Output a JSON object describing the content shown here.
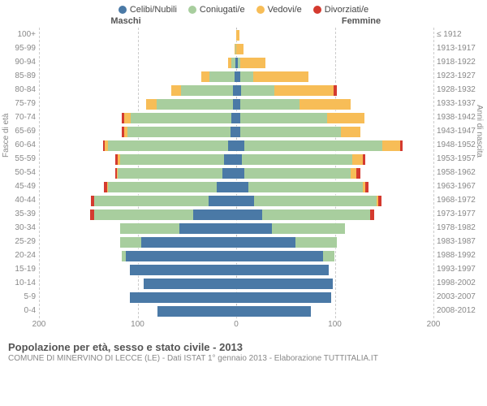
{
  "legend": [
    {
      "label": "Celibi/Nubili",
      "color": "#4a79a6"
    },
    {
      "label": "Coniugati/e",
      "color": "#a8ce9e"
    },
    {
      "label": "Vedovi/e",
      "color": "#f7bd57"
    },
    {
      "label": "Divorziati/e",
      "color": "#d43a2f"
    }
  ],
  "colors": {
    "celibi": "#4a79a6",
    "coniugati": "#a8ce9e",
    "vedovi": "#f7bd57",
    "divorziati": "#d43a2f",
    "grid": "#cccccc",
    "text_muted": "#888888"
  },
  "gender_labels": {
    "left": "Maschi",
    "right": "Femmine"
  },
  "axis_titles": {
    "left": "Fasce di età",
    "right": "Anni di nascita"
  },
  "x_axis": {
    "min": 0,
    "max": 200,
    "ticks": [
      200,
      100,
      0,
      100,
      200
    ]
  },
  "title": "Popolazione per età, sesso e stato civile - 2013",
  "subtitle": "COMUNE DI MINERVINO DI LECCE (LE) - Dati ISTAT 1° gennaio 2013 - Elaborazione TUTTITALIA.IT",
  "rows": [
    {
      "age": "100+",
      "year": "≤ 1912",
      "m": {
        "c": 0,
        "co": 0,
        "v": 0,
        "d": 0
      },
      "f": {
        "c": 0,
        "co": 0,
        "v": 3,
        "d": 0
      }
    },
    {
      "age": "95-99",
      "year": "1913-1917",
      "m": {
        "c": 0,
        "co": 1,
        "v": 1,
        "d": 0
      },
      "f": {
        "c": 0,
        "co": 0,
        "v": 7,
        "d": 0
      }
    },
    {
      "age": "90-94",
      "year": "1918-1922",
      "m": {
        "c": 1,
        "co": 4,
        "v": 3,
        "d": 0
      },
      "f": {
        "c": 2,
        "co": 2,
        "v": 26,
        "d": 0
      }
    },
    {
      "age": "85-89",
      "year": "1923-1927",
      "m": {
        "c": 2,
        "co": 25,
        "v": 8,
        "d": 0
      },
      "f": {
        "c": 4,
        "co": 13,
        "v": 56,
        "d": 0
      }
    },
    {
      "age": "80-84",
      "year": "1928-1932",
      "m": {
        "c": 3,
        "co": 53,
        "v": 10,
        "d": 0
      },
      "f": {
        "c": 5,
        "co": 34,
        "v": 60,
        "d": 3
      }
    },
    {
      "age": "75-79",
      "year": "1933-1937",
      "m": {
        "c": 3,
        "co": 78,
        "v": 10,
        "d": 0
      },
      "f": {
        "c": 4,
        "co": 60,
        "v": 52,
        "d": 0
      }
    },
    {
      "age": "70-74",
      "year": "1938-1942",
      "m": {
        "c": 5,
        "co": 102,
        "v": 7,
        "d": 2
      },
      "f": {
        "c": 4,
        "co": 88,
        "v": 38,
        "d": 0
      }
    },
    {
      "age": "65-69",
      "year": "1943-1947",
      "m": {
        "c": 6,
        "co": 104,
        "v": 4,
        "d": 2
      },
      "f": {
        "c": 4,
        "co": 102,
        "v": 20,
        "d": 0
      }
    },
    {
      "age": "60-64",
      "year": "1948-1952",
      "m": {
        "c": 8,
        "co": 122,
        "v": 3,
        "d": 2
      },
      "f": {
        "c": 8,
        "co": 140,
        "v": 18,
        "d": 3
      }
    },
    {
      "age": "55-59",
      "year": "1953-1957",
      "m": {
        "c": 12,
        "co": 106,
        "v": 2,
        "d": 3
      },
      "f": {
        "c": 6,
        "co": 112,
        "v": 10,
        "d": 3
      }
    },
    {
      "age": "50-54",
      "year": "1958-1962",
      "m": {
        "c": 14,
        "co": 106,
        "v": 1,
        "d": 2
      },
      "f": {
        "c": 8,
        "co": 108,
        "v": 6,
        "d": 4
      }
    },
    {
      "age": "45-49",
      "year": "1963-1967",
      "m": {
        "c": 20,
        "co": 110,
        "v": 1,
        "d": 3
      },
      "f": {
        "c": 12,
        "co": 116,
        "v": 3,
        "d": 3
      }
    },
    {
      "age": "40-44",
      "year": "1968-1972",
      "m": {
        "c": 28,
        "co": 116,
        "v": 0,
        "d": 3
      },
      "f": {
        "c": 18,
        "co": 124,
        "v": 2,
        "d": 3
      }
    },
    {
      "age": "35-39",
      "year": "1973-1977",
      "m": {
        "c": 44,
        "co": 100,
        "v": 0,
        "d": 4
      },
      "f": {
        "c": 26,
        "co": 110,
        "v": 0,
        "d": 4
      }
    },
    {
      "age": "30-34",
      "year": "1978-1982",
      "m": {
        "c": 58,
        "co": 60,
        "v": 0,
        "d": 0
      },
      "f": {
        "c": 36,
        "co": 74,
        "v": 0,
        "d": 0
      }
    },
    {
      "age": "25-29",
      "year": "1983-1987",
      "m": {
        "c": 96,
        "co": 22,
        "v": 0,
        "d": 0
      },
      "f": {
        "c": 60,
        "co": 42,
        "v": 0,
        "d": 0
      }
    },
    {
      "age": "20-24",
      "year": "1988-1992",
      "m": {
        "c": 112,
        "co": 4,
        "v": 0,
        "d": 0
      },
      "f": {
        "c": 88,
        "co": 12,
        "v": 0,
        "d": 0
      }
    },
    {
      "age": "15-19",
      "year": "1993-1997",
      "m": {
        "c": 108,
        "co": 0,
        "v": 0,
        "d": 0
      },
      "f": {
        "c": 94,
        "co": 0,
        "v": 0,
        "d": 0
      }
    },
    {
      "age": "10-14",
      "year": "1998-2002",
      "m": {
        "c": 94,
        "co": 0,
        "v": 0,
        "d": 0
      },
      "f": {
        "c": 98,
        "co": 0,
        "v": 0,
        "d": 0
      }
    },
    {
      "age": "5-9",
      "year": "2003-2007",
      "m": {
        "c": 108,
        "co": 0,
        "v": 0,
        "d": 0
      },
      "f": {
        "c": 96,
        "co": 0,
        "v": 0,
        "d": 0
      }
    },
    {
      "age": "0-4",
      "year": "2008-2012",
      "m": {
        "c": 80,
        "co": 0,
        "v": 0,
        "d": 0
      },
      "f": {
        "c": 76,
        "co": 0,
        "v": 0,
        "d": 0
      }
    }
  ]
}
